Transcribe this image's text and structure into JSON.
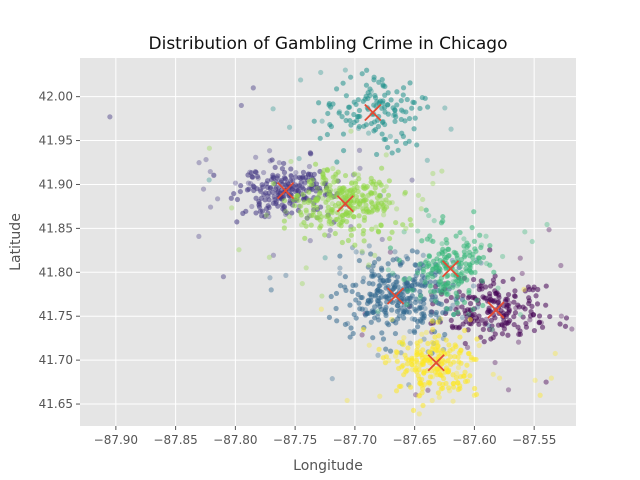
{
  "chart_data": {
    "type": "scatter",
    "title": "Distribution of Gambling Crime in Chicago",
    "xlabel": "Longitude",
    "ylabel": "Latitude",
    "xlim": [
      -87.93,
      -87.515
    ],
    "ylim": [
      41.625,
      42.044
    ],
    "x_ticks": [
      -87.9,
      -87.85,
      -87.8,
      -87.75,
      -87.7,
      -87.65,
      -87.6,
      -87.55
    ],
    "y_ticks": [
      41.65,
      41.7,
      41.75,
      41.8,
      41.85,
      41.9,
      41.95,
      42.0
    ],
    "grid": true,
    "clusters": [
      {
        "color": "#440154",
        "center": [
          -87.582,
          41.757
        ],
        "spread": [
          0.025,
          0.018
        ],
        "count": 220
      },
      {
        "color": "#443983",
        "center": [
          -87.758,
          41.893
        ],
        "spread": [
          0.018,
          0.014
        ],
        "count": 240
      },
      {
        "color": "#31688e",
        "center": [
          -87.666,
          41.773
        ],
        "spread": [
          0.022,
          0.022
        ],
        "count": 320
      },
      {
        "color": "#21918c",
        "center": [
          -87.685,
          41.982
        ],
        "spread": [
          0.022,
          0.02
        ],
        "count": 150
      },
      {
        "color": "#35b779",
        "center": [
          -87.62,
          41.804
        ],
        "spread": [
          0.016,
          0.02
        ],
        "count": 200
      },
      {
        "color": "#8fd744",
        "center": [
          -87.708,
          41.878
        ],
        "spread": [
          0.02,
          0.018
        ],
        "count": 300
      },
      {
        "color": "#fde725",
        "center": [
          -87.632,
          41.697
        ],
        "spread": [
          0.018,
          0.018
        ],
        "count": 230
      }
    ],
    "centroid_marker_color": "#e24a33",
    "outlier_points": [
      {
        "x": -87.905,
        "y": 41.977,
        "color": "#443983"
      },
      {
        "x": -87.81,
        "y": 41.795,
        "color": "#443983"
      },
      {
        "x": -87.77,
        "y": 41.78,
        "color": "#31688e"
      },
      {
        "x": -87.545,
        "y": 41.66,
        "color": "#fde725"
      },
      {
        "x": -87.54,
        "y": 41.675,
        "color": "#440154"
      },
      {
        "x": -87.6,
        "y": 41.66,
        "color": "#fde725"
      },
      {
        "x": -87.795,
        "y": 41.99,
        "color": "#443983"
      },
      {
        "x": -87.785,
        "y": 42.01,
        "color": "#443983"
      }
    ]
  }
}
